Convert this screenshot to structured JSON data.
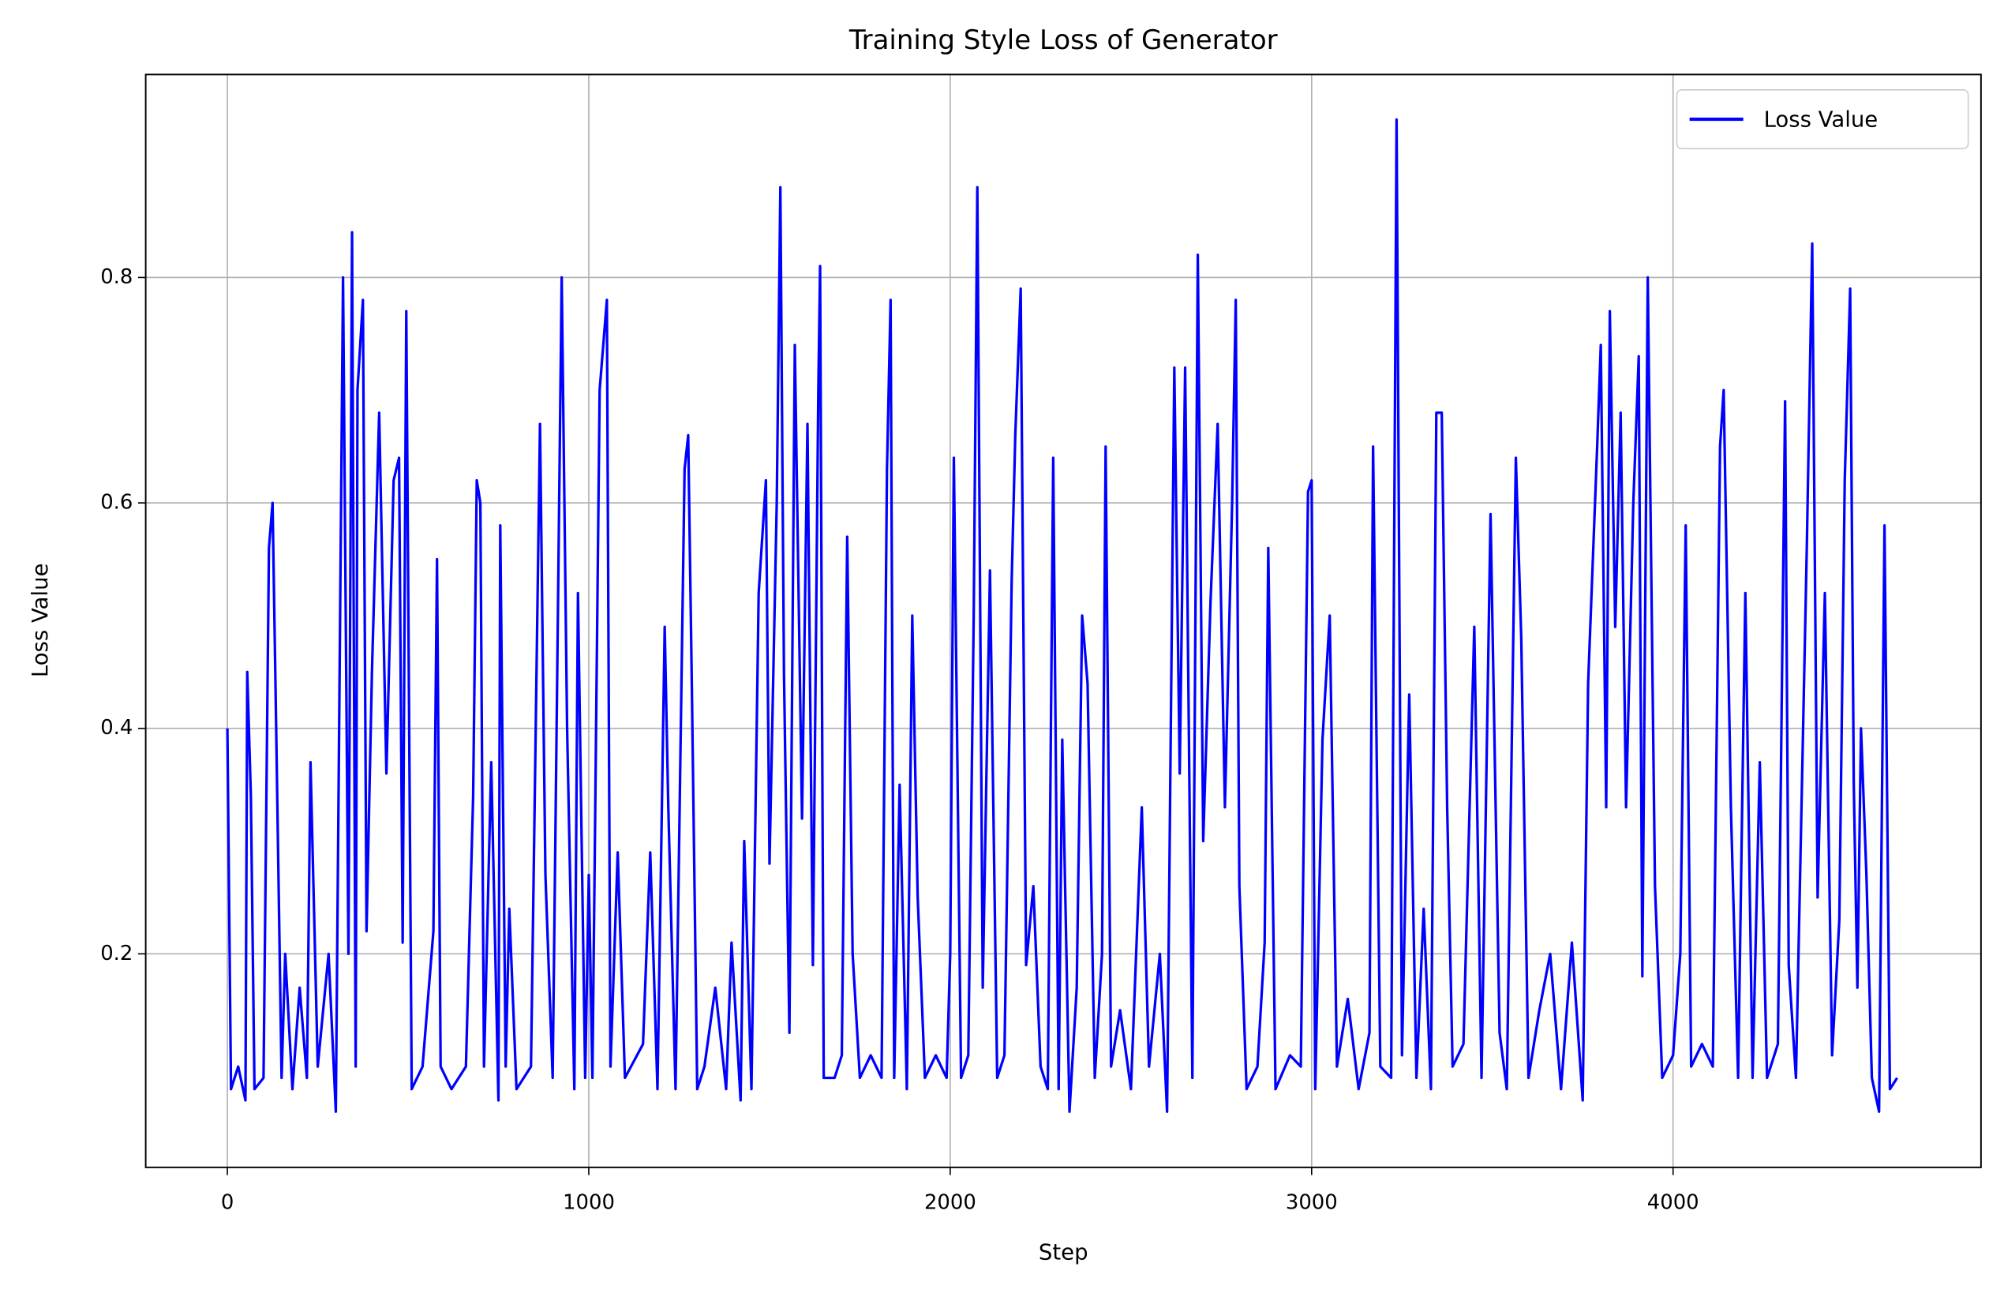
{
  "chart_data": {
    "type": "line",
    "title": "Training Style Loss of Generator",
    "xlabel": "Step",
    "ylabel": "Loss Value",
    "xlim": [
      -226,
      4852
    ],
    "ylim": [
      0.0106,
      0.98
    ],
    "xticks": [
      0,
      1000,
      2000,
      3000,
      4000
    ],
    "yticks": [
      0.2,
      0.4,
      0.6,
      0.8
    ],
    "grid": true,
    "legend": "upper right",
    "x": [
      0,
      10,
      30,
      50,
      55,
      65,
      75,
      100,
      115,
      125,
      135,
      150,
      160,
      180,
      200,
      220,
      230,
      250,
      280,
      300,
      320,
      335,
      345,
      355,
      360,
      375,
      385,
      400,
      420,
      440,
      460,
      475,
      485,
      495,
      510,
      540,
      570,
      580,
      590,
      620,
      660,
      680,
      690,
      700,
      710,
      730,
      750,
      755,
      770,
      780,
      800,
      840,
      865,
      880,
      900,
      925,
      940,
      960,
      970,
      990,
      1000,
      1010,
      1030,
      1050,
      1060,
      1080,
      1100,
      1150,
      1170,
      1190,
      1210,
      1220,
      1240,
      1265,
      1275,
      1285,
      1300,
      1320,
      1350,
      1380,
      1395,
      1420,
      1430,
      1450,
      1470,
      1490,
      1500,
      1520,
      1530,
      1540,
      1555,
      1570,
      1590,
      1605,
      1620,
      1635,
      1640,
      1650,
      1680,
      1700,
      1715,
      1730,
      1750,
      1780,
      1810,
      1825,
      1835,
      1845,
      1860,
      1880,
      1895,
      1910,
      1930,
      1960,
      1990,
      2000,
      2010,
      2030,
      2050,
      2065,
      2075,
      2090,
      2110,
      2130,
      2150,
      2170,
      2180,
      2195,
      2210,
      2230,
      2250,
      2270,
      2285,
      2300,
      2310,
      2330,
      2350,
      2365,
      2380,
      2400,
      2420,
      2430,
      2445,
      2470,
      2500,
      2530,
      2550,
      2580,
      2600,
      2620,
      2635,
      2650,
      2670,
      2685,
      2700,
      2720,
      2740,
      2760,
      2780,
      2790,
      2800,
      2820,
      2850,
      2870,
      2880,
      2900,
      2940,
      2970,
      2990,
      3000,
      3010,
      3030,
      3050,
      3070,
      3100,
      3130,
      3160,
      3170,
      3190,
      3220,
      3235,
      3250,
      3270,
      3290,
      3310,
      3330,
      3345,
      3360,
      3375,
      3390,
      3420,
      3450,
      3470,
      3495,
      3520,
      3540,
      3565,
      3580,
      3600,
      3630,
      3660,
      3690,
      3720,
      3750,
      3765,
      3790,
      3800,
      3815,
      3825,
      3840,
      3855,
      3870,
      3890,
      3905,
      3915,
      3930,
      3950,
      3970,
      4000,
      4020,
      4035,
      4050,
      4080,
      4110,
      4130,
      4140,
      4160,
      4180,
      4200,
      4220,
      4240,
      4260,
      4290,
      4310,
      4320,
      4340,
      4370,
      4385,
      4400,
      4420,
      4440,
      4460,
      4475,
      4490,
      4500,
      4510,
      4520,
      4535,
      4550,
      4570,
      4585,
      4600,
      4620
    ],
    "series": [
      {
        "name": "Loss Value",
        "color": "#0000ff",
        "values": [
          0.4,
          0.08,
          0.1,
          0.07,
          0.45,
          0.34,
          0.08,
          0.09,
          0.56,
          0.6,
          0.4,
          0.09,
          0.2,
          0.08,
          0.17,
          0.09,
          0.37,
          0.1,
          0.2,
          0.06,
          0.8,
          0.2,
          0.84,
          0.1,
          0.7,
          0.78,
          0.22,
          0.45,
          0.68,
          0.36,
          0.62,
          0.64,
          0.21,
          0.77,
          0.08,
          0.1,
          0.22,
          0.55,
          0.1,
          0.08,
          0.1,
          0.34,
          0.62,
          0.6,
          0.1,
          0.37,
          0.07,
          0.58,
          0.1,
          0.24,
          0.08,
          0.1,
          0.67,
          0.27,
          0.09,
          0.8,
          0.4,
          0.08,
          0.52,
          0.09,
          0.27,
          0.09,
          0.7,
          0.78,
          0.1,
          0.29,
          0.09,
          0.12,
          0.29,
          0.08,
          0.49,
          0.33,
          0.08,
          0.63,
          0.66,
          0.44,
          0.08,
          0.1,
          0.17,
          0.08,
          0.21,
          0.07,
          0.3,
          0.08,
          0.52,
          0.62,
          0.28,
          0.6,
          0.88,
          0.45,
          0.13,
          0.74,
          0.32,
          0.67,
          0.19,
          0.7,
          0.81,
          0.09,
          0.09,
          0.11,
          0.57,
          0.2,
          0.09,
          0.11,
          0.09,
          0.63,
          0.78,
          0.09,
          0.35,
          0.08,
          0.5,
          0.25,
          0.09,
          0.11,
          0.09,
          0.2,
          0.64,
          0.09,
          0.11,
          0.5,
          0.88,
          0.17,
          0.54,
          0.09,
          0.11,
          0.53,
          0.66,
          0.79,
          0.19,
          0.26,
          0.1,
          0.08,
          0.64,
          0.08,
          0.39,
          0.06,
          0.17,
          0.5,
          0.44,
          0.09,
          0.2,
          0.65,
          0.1,
          0.15,
          0.08,
          0.33,
          0.1,
          0.2,
          0.06,
          0.72,
          0.36,
          0.72,
          0.09,
          0.82,
          0.3,
          0.51,
          0.67,
          0.33,
          0.6,
          0.78,
          0.26,
          0.08,
          0.1,
          0.21,
          0.56,
          0.08,
          0.11,
          0.1,
          0.61,
          0.62,
          0.08,
          0.39,
          0.5,
          0.1,
          0.16,
          0.08,
          0.13,
          0.65,
          0.1,
          0.09,
          0.94,
          0.11,
          0.43,
          0.09,
          0.24,
          0.08,
          0.68,
          0.68,
          0.33,
          0.1,
          0.12,
          0.49,
          0.09,
          0.59,
          0.13,
          0.08,
          0.64,
          0.48,
          0.09,
          0.15,
          0.2,
          0.08,
          0.21,
          0.07,
          0.44,
          0.65,
          0.74,
          0.33,
          0.77,
          0.49,
          0.68,
          0.33,
          0.6,
          0.73,
          0.18,
          0.8,
          0.26,
          0.09,
          0.11,
          0.2,
          0.58,
          0.1,
          0.12,
          0.1,
          0.65,
          0.7,
          0.33,
          0.09,
          0.52,
          0.09,
          0.37,
          0.09,
          0.12,
          0.69,
          0.19,
          0.09,
          0.56,
          0.83,
          0.25,
          0.52,
          0.11,
          0.23,
          0.62,
          0.79,
          0.35,
          0.17,
          0.4,
          0.27,
          0.09,
          0.06,
          0.58,
          0.08,
          0.09
        ]
      }
    ]
  }
}
